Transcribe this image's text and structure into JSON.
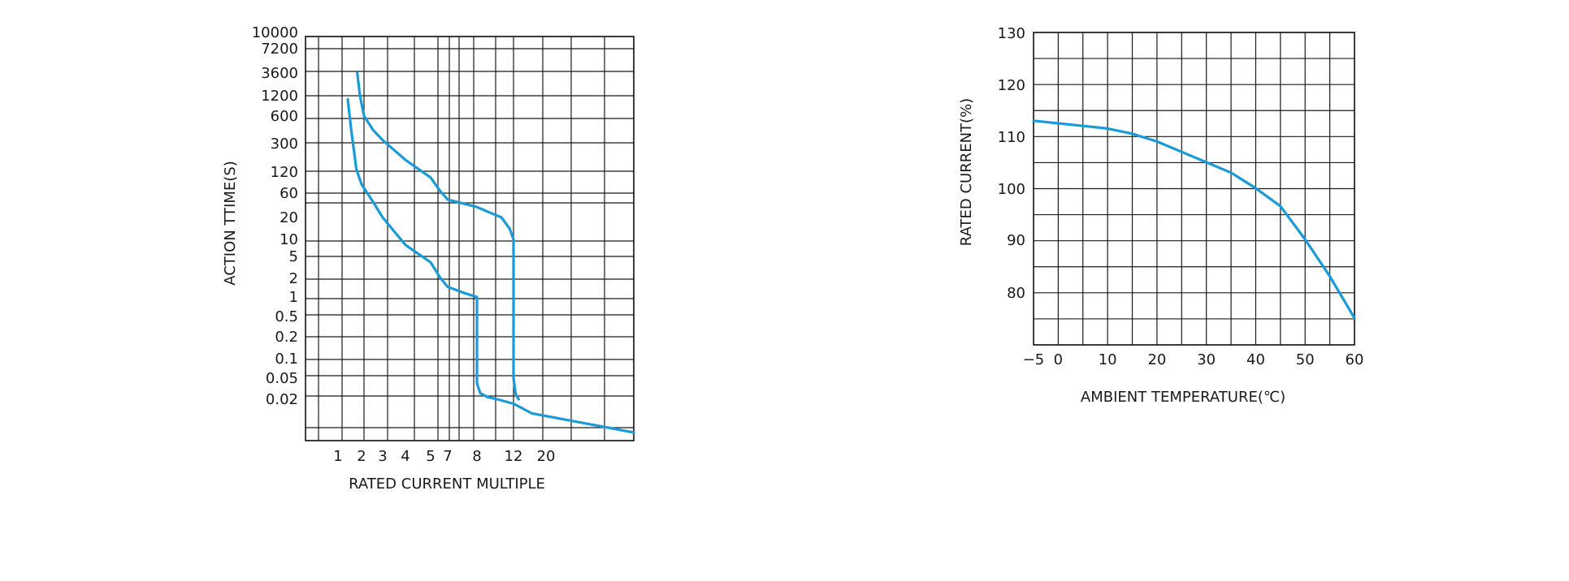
{
  "colors": {
    "curve": "#1a9bd7",
    "grid": "#1a1a1a"
  },
  "chart_data": [
    {
      "type": "line",
      "xlabel": "RATED CURRENT MULTIPLE",
      "ylabel": "ACTION TTIME(S)",
      "y_scale": "log",
      "x_scale": "log",
      "x_tick_labels": [
        "1",
        "2",
        "3",
        "4",
        "5",
        "7",
        "8",
        "12",
        "20"
      ],
      "y_tick_labels": [
        "10000",
        "7200",
        "3600",
        "1200",
        "600",
        "300",
        "120",
        "60",
        "20",
        "10",
        "5",
        "2",
        "1",
        "0.5",
        "0.2",
        "0.1",
        "0.05",
        "0.02"
      ],
      "grid": true,
      "series": [
        {
          "x": [
            1.3,
            1.45,
            1.7,
            2.0,
            2.5,
            3.0,
            4.0,
            5.0,
            6.0,
            7.0,
            7.6,
            8.0,
            8.0,
            8.0,
            8.3,
            9.0,
            10.0,
            12.0,
            16.0,
            30.0
          ],
          "y": [
            1200,
            400,
            130,
            80,
            40,
            20,
            8,
            4,
            2.2,
            1.5,
            1.15,
            1.0,
            0.1,
            0.04,
            0.026,
            0.022,
            0.02,
            0.017,
            0.012,
            0.006
          ]
        },
        {
          "x": [
            1.75,
            1.9,
            2.1,
            2.5,
            3.0,
            4.0,
            5.0,
            6.0,
            7.0,
            8.0,
            9.0,
            10.5,
            11.5,
            12.0,
            12.0,
            12.0,
            12.4,
            13.0
          ],
          "y": [
            3600,
            1400,
            600,
            400,
            300,
            170,
            100,
            65,
            45,
            32,
            26,
            20,
            14,
            10,
            1.0,
            0.05,
            0.025,
            0.02
          ]
        }
      ]
    },
    {
      "type": "line",
      "xlabel": "AMBIENT TEMPERATURE(℃)",
      "ylabel": "RATED CURRENT(%)",
      "xlim": [
        -5,
        60
      ],
      "ylim": [
        70,
        130
      ],
      "x_ticks": [
        "−5",
        "0",
        "10",
        "20",
        "30",
        "40",
        "50",
        "60"
      ],
      "y_ticks": [
        "130",
        "120",
        "110",
        "100",
        "90",
        "80"
      ],
      "grid": true,
      "series": [
        {
          "x": [
            -5,
            0,
            5,
            10,
            15,
            20,
            25,
            30,
            35,
            40,
            45,
            50,
            55,
            60
          ],
          "y": [
            113,
            112.5,
            112,
            111.5,
            110.5,
            109,
            107,
            105,
            103,
            100,
            96.5,
            90,
            83,
            75
          ]
        }
      ]
    }
  ]
}
